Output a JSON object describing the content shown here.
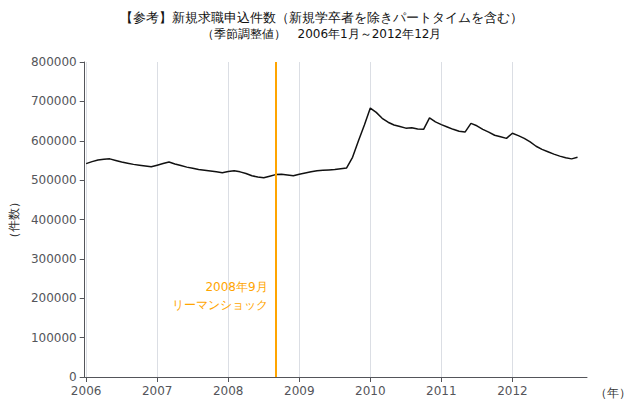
{
  "chart_data": {
    "type": "line",
    "title": "【参考】新規求職申込件数（新規学卒者を除きパートタイムを含む）",
    "subtitle": "（季節調整値）　2006年1月～2012年12月",
    "ylabel": "（件数）",
    "xlabel": "（年）",
    "color": "#111111",
    "grid": "x",
    "xlim": [
      2005.98,
      2013.05
    ],
    "xticks": [
      2006,
      2007,
      2008,
      2009,
      2010,
      2011,
      2012
    ],
    "ylim": [
      0,
      800000
    ],
    "yticks": [
      0,
      100000,
      200000,
      300000,
      400000,
      500000,
      600000,
      700000,
      800000
    ],
    "vline": {
      "x": 2008.667,
      "color": "#FFA500",
      "labels": [
        "2008年9月",
        "リーマンショック"
      ]
    },
    "x": [
      2006,
      2006.083333,
      2006.166667,
      2006.25,
      2006.333333,
      2006.416667,
      2006.5,
      2006.583333,
      2006.666667,
      2006.75,
      2006.833333,
      2006.916667,
      2007,
      2007.083333,
      2007.166667,
      2007.25,
      2007.333333,
      2007.416667,
      2007.5,
      2007.583333,
      2007.666667,
      2007.75,
      2007.833333,
      2007.916667,
      2008,
      2008.083333,
      2008.166667,
      2008.25,
      2008.333333,
      2008.416667,
      2008.5,
      2008.583333,
      2008.666667,
      2008.75,
      2008.833333,
      2008.916667,
      2009,
      2009.083333,
      2009.166667,
      2009.25,
      2009.333333,
      2009.416667,
      2009.5,
      2009.583333,
      2009.666667,
      2009.75,
      2009.833333,
      2009.916667,
      2010,
      2010.083333,
      2010.166667,
      2010.25,
      2010.333333,
      2010.416667,
      2010.5,
      2010.583333,
      2010.666667,
      2010.75,
      2010.833333,
      2010.916667,
      2011,
      2011.083333,
      2011.166667,
      2011.25,
      2011.333333,
      2011.416667,
      2011.5,
      2011.583333,
      2011.666667,
      2011.75,
      2011.833333,
      2011.916667,
      2012,
      2012.083333,
      2012.166667,
      2012.25,
      2012.333333,
      2012.416667,
      2012.5,
      2012.583333,
      2012.666667,
      2012.75,
      2012.833333,
      2012.916667
    ],
    "values": [
      542000,
      547000,
      551000,
      553000,
      554000,
      550000,
      546000,
      543000,
      540000,
      538000,
      536000,
      534000,
      538000,
      542000,
      546000,
      541000,
      537000,
      533000,
      530000,
      527000,
      525000,
      523000,
      521000,
      519000,
      522000,
      524000,
      521000,
      517000,
      511000,
      508000,
      506000,
      510000,
      514000,
      515000,
      513000,
      511000,
      515000,
      518000,
      521000,
      524000,
      525000,
      526000,
      527000,
      529000,
      531000,
      558000,
      600000,
      640000,
      683000,
      672000,
      657000,
      647000,
      640000,
      636000,
      632000,
      633000,
      630000,
      629000,
      658000,
      648000,
      641000,
      635000,
      629000,
      624000,
      622000,
      644000,
      638000,
      629000,
      622000,
      614000,
      610000,
      606000,
      619000,
      613000,
      606000,
      597000,
      586000,
      578000,
      572000,
      566000,
      561000,
      557000,
      554000,
      558000
    ]
  }
}
